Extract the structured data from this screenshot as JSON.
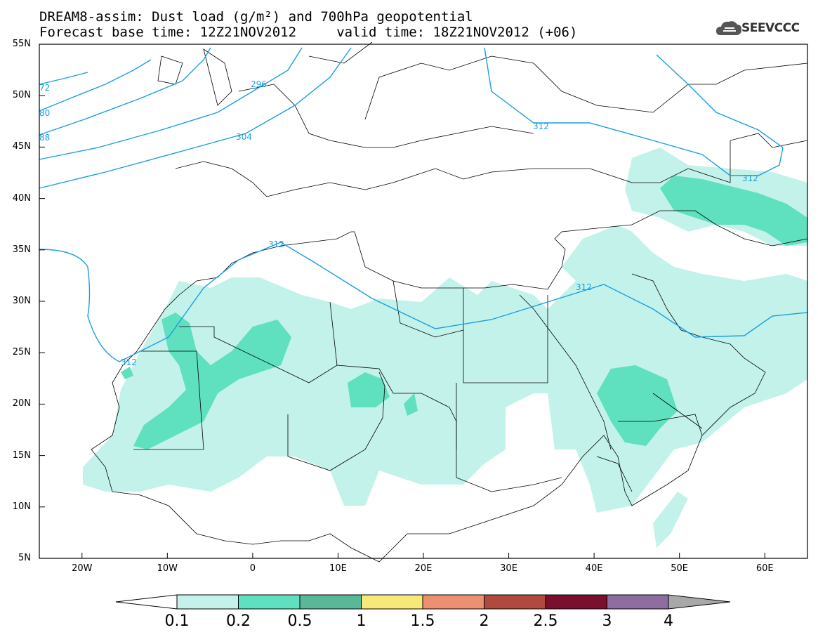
{
  "header": {
    "title_line1": "DREAM8-assim: Dust load (g/m²) and 700hPa geopotential",
    "title_line2": "Forecast base time: 12Z21NOV2012     valid time: 18Z21NOV2012 (+06)",
    "logo_text": "SEEVCCC",
    "logo_icon": "cloud-icon"
  },
  "map": {
    "lon_range": [
      -25,
      65
    ],
    "lat_range": [
      5,
      55
    ],
    "lat_labels": [
      "55N",
      "50N",
      "45N",
      "40N",
      "35N",
      "30N",
      "25N",
      "20N",
      "15N",
      "10N",
      "5N"
    ],
    "lon_labels": [
      "20W",
      "10W",
      "0",
      "10E",
      "20E",
      "30E",
      "40E",
      "50E",
      "60E"
    ],
    "contour_labels": [
      "72",
      "80",
      "88",
      "296",
      "304",
      "312",
      "312",
      "312",
      "312",
      "312"
    ],
    "contour_color": "#1a9ee0",
    "border_color": "#000000"
  },
  "colorbar": {
    "levels": [
      "0.1",
      "0.2",
      "0.5",
      "1",
      "1.5",
      "2",
      "2.5",
      "3",
      "4"
    ],
    "colors": [
      "#ffffff",
      "#c3f2ea",
      "#5fe0be",
      "#58b898",
      "#f7e87a",
      "#ec9070",
      "#b04a3e",
      "#7a0f2e",
      "#8e6ea0",
      "#a8a8a8"
    ]
  }
}
